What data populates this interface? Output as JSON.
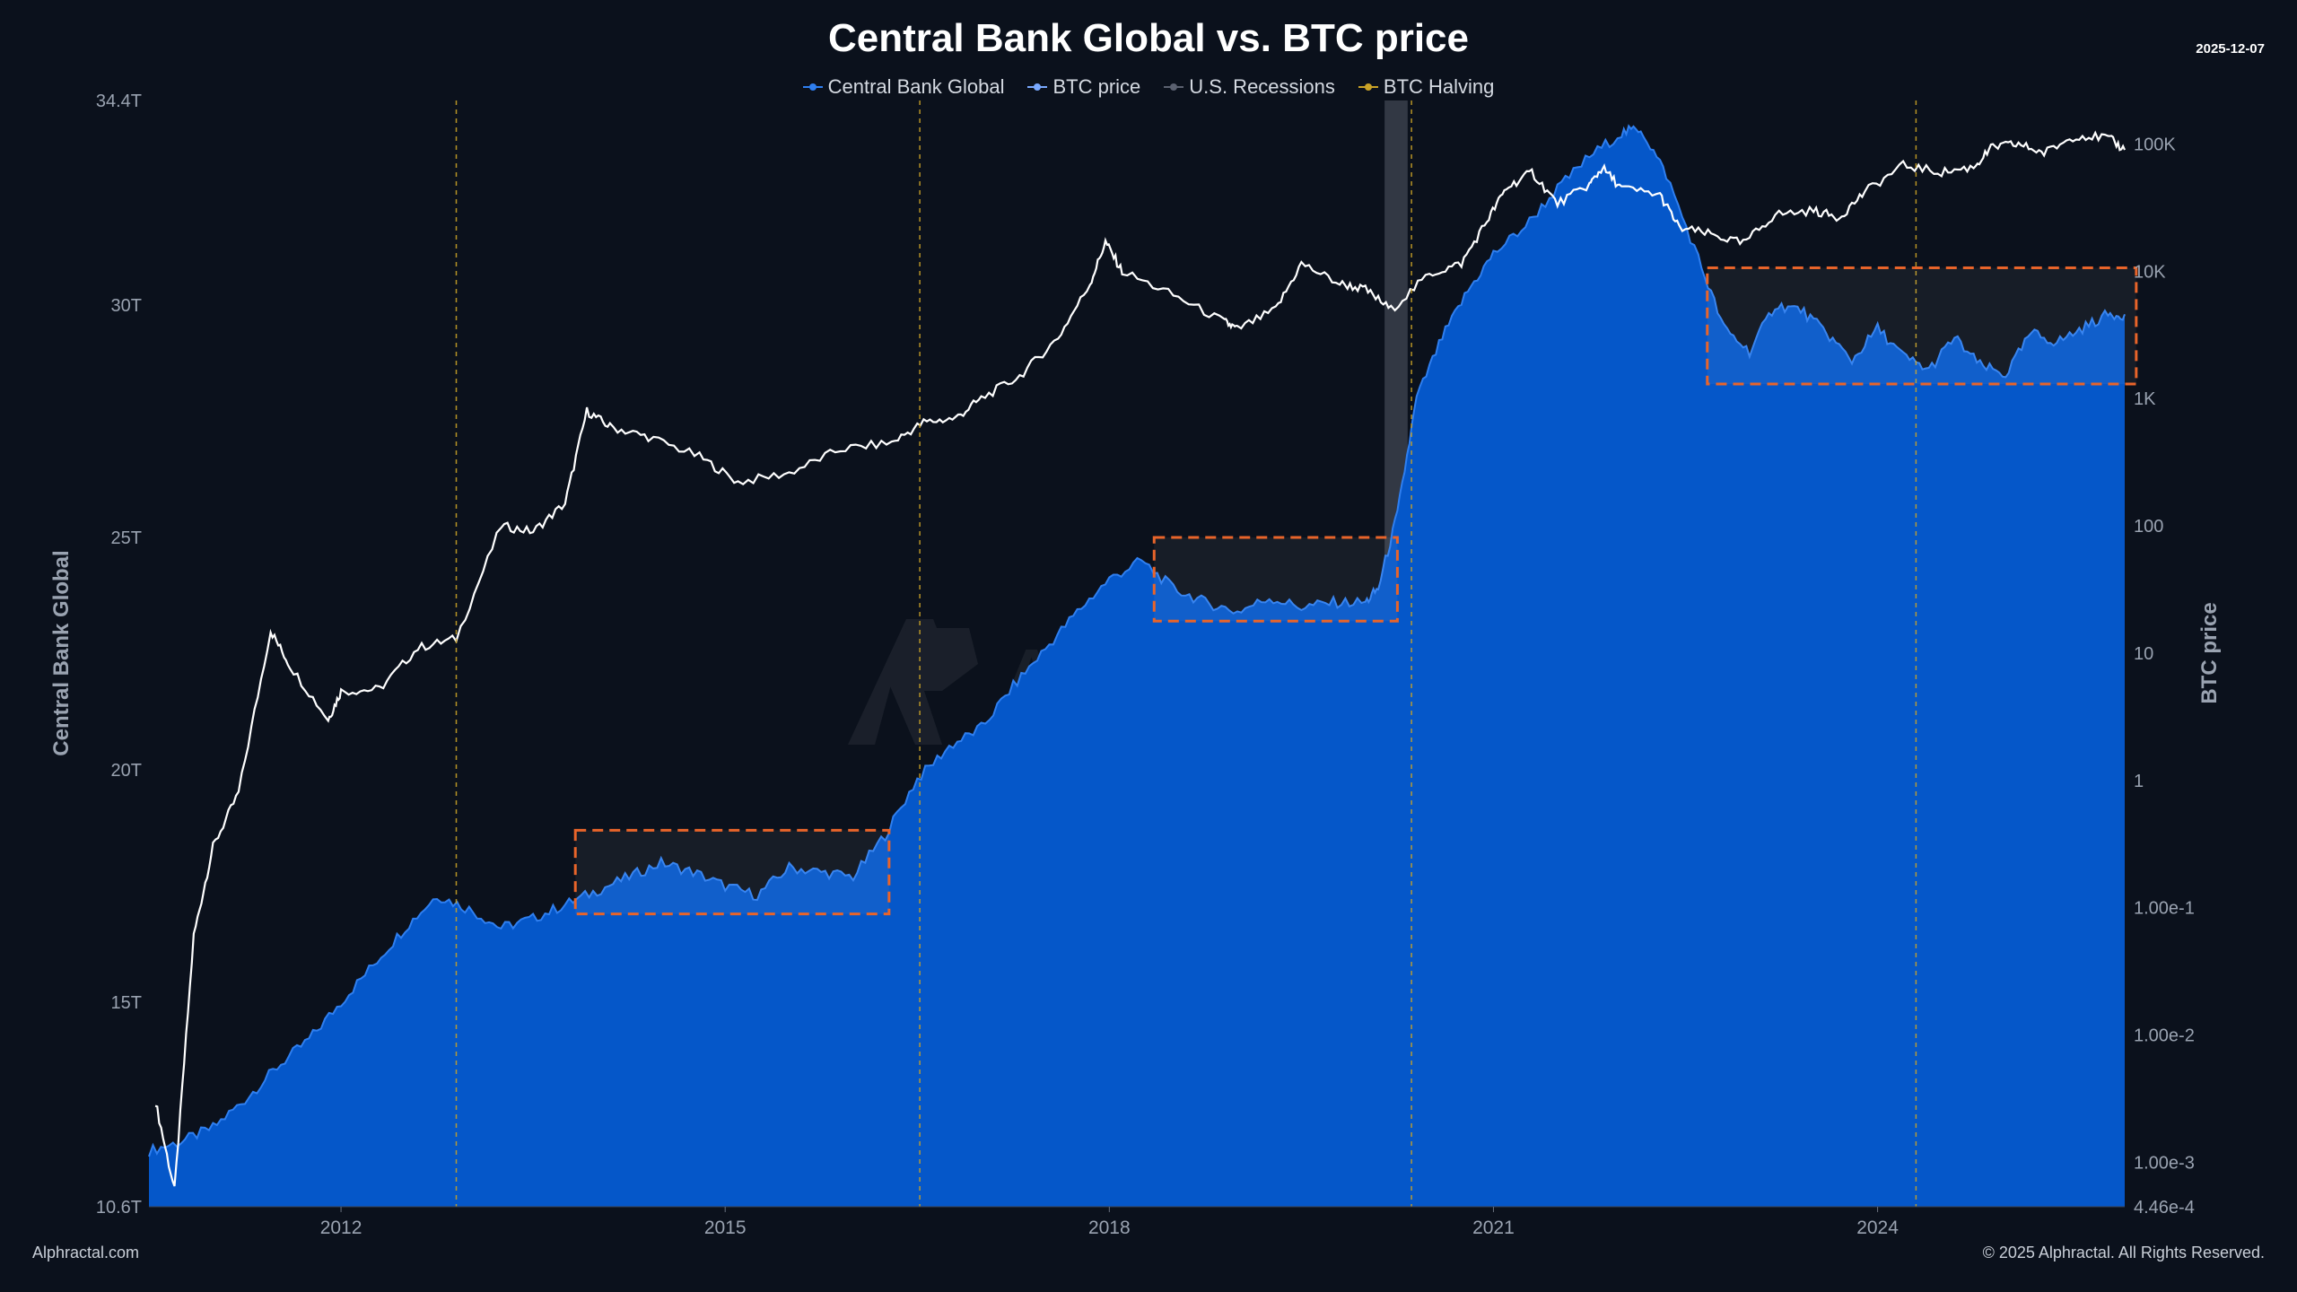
{
  "header": {
    "title": "Central Bank Global vs. BTC price",
    "date": "2025-12-07"
  },
  "legend": [
    {
      "label": "Central Bank Global",
      "color": "#2f7ff0"
    },
    {
      "label": "BTC price",
      "color": "#79a9ff"
    },
    {
      "label": "U.S. Recessions",
      "color": "#5b6170"
    },
    {
      "label": "BTC Halving",
      "color": "#c9a227"
    }
  ],
  "footer": {
    "left": "Alphractal.com",
    "right": "© 2025 Alphractal. All Rights Reserved."
  },
  "watermark": "Alphractal",
  "colors": {
    "background": "#0b111c",
    "area_fill": "#0557c9",
    "area_edge": "#2f7ff0",
    "btc_line": "#ffffff",
    "halving": "#c9a227",
    "recession": "#3a3f4b",
    "highlight_box": "#e8642a"
  },
  "chart_data": {
    "type": "area",
    "title": "Central Bank Global vs. BTC price",
    "x_range": [
      2010.5,
      2025.93
    ],
    "x_ticks": [
      {
        "value": 2012,
        "label": "2012"
      },
      {
        "value": 2015,
        "label": "2015"
      },
      {
        "value": 2018,
        "label": "2018"
      },
      {
        "value": 2021,
        "label": "2021"
      },
      {
        "value": 2024,
        "label": "2024"
      }
    ],
    "y_left": {
      "label": "Central Bank Global",
      "range": [
        10.6,
        34.4
      ],
      "ticks": [
        {
          "value": 10.6,
          "label": "10.6T"
        },
        {
          "value": 15,
          "label": "15T"
        },
        {
          "value": 20,
          "label": "20T"
        },
        {
          "value": 25,
          "label": "25T"
        },
        {
          "value": 30,
          "label": "30T"
        },
        {
          "value": 34.4,
          "label": "34.4T"
        }
      ]
    },
    "y_right": {
      "label": "BTC price",
      "scale": "log",
      "range": [
        0.000446,
        220000
      ],
      "ticks": [
        {
          "value": 0.000446,
          "label": "4.46e-4"
        },
        {
          "value": 0.001,
          "label": "1.00e-3"
        },
        {
          "value": 0.01,
          "label": "1.00e-2"
        },
        {
          "value": 0.1,
          "label": "1.00e-1"
        },
        {
          "value": 1,
          "label": "1"
        },
        {
          "value": 10,
          "label": "10"
        },
        {
          "value": 100,
          "label": "100"
        },
        {
          "value": 1000,
          "label": "1K"
        },
        {
          "value": 10000,
          "label": "10K"
        },
        {
          "value": 100000,
          "label": "100K"
        }
      ]
    },
    "series": [
      {
        "name": "Central Bank Global",
        "axis": "left",
        "points": [
          [
            2010.5,
            11.8
          ],
          [
            2010.75,
            12.0
          ],
          [
            2011.0,
            12.3
          ],
          [
            2011.25,
            12.9
          ],
          [
            2011.5,
            13.6
          ],
          [
            2011.75,
            14.2
          ],
          [
            2012.0,
            15.0
          ],
          [
            2012.25,
            15.8
          ],
          [
            2012.5,
            16.6
          ],
          [
            2012.75,
            17.3
          ],
          [
            2013.0,
            17.0
          ],
          [
            2013.25,
            16.6
          ],
          [
            2013.5,
            16.8
          ],
          [
            2013.75,
            17.1
          ],
          [
            2014.0,
            17.4
          ],
          [
            2014.25,
            17.7
          ],
          [
            2014.5,
            18.0
          ],
          [
            2014.75,
            17.8
          ],
          [
            2015.0,
            17.5
          ],
          [
            2015.25,
            17.3
          ],
          [
            2015.5,
            17.9
          ],
          [
            2015.75,
            17.8
          ],
          [
            2016.0,
            17.7
          ],
          [
            2016.25,
            18.6
          ],
          [
            2016.5,
            19.8
          ],
          [
            2016.75,
            20.5
          ],
          [
            2017.0,
            20.9
          ],
          [
            2017.25,
            21.8
          ],
          [
            2017.5,
            22.6
          ],
          [
            2017.75,
            23.4
          ],
          [
            2018.0,
            24.1
          ],
          [
            2018.25,
            24.5
          ],
          [
            2018.5,
            23.9
          ],
          [
            2018.75,
            23.6
          ],
          [
            2019.0,
            23.4
          ],
          [
            2019.25,
            23.7
          ],
          [
            2019.5,
            23.5
          ],
          [
            2019.75,
            23.6
          ],
          [
            2020.0,
            23.6
          ],
          [
            2020.1,
            23.9
          ],
          [
            2020.25,
            25.5
          ],
          [
            2020.4,
            28.0
          ],
          [
            2020.6,
            29.3
          ],
          [
            2020.8,
            30.3
          ],
          [
            2021.0,
            31.1
          ],
          [
            2021.25,
            31.7
          ],
          [
            2021.5,
            32.5
          ],
          [
            2021.75,
            33.2
          ],
          [
            2022.0,
            33.7
          ],
          [
            2022.15,
            33.8
          ],
          [
            2022.35,
            32.8
          ],
          [
            2022.6,
            31.0
          ],
          [
            2022.8,
            29.5
          ],
          [
            2023.0,
            29.0
          ],
          [
            2023.2,
            30.0
          ],
          [
            2023.4,
            29.9
          ],
          [
            2023.6,
            29.4
          ],
          [
            2023.8,
            28.8
          ],
          [
            2024.0,
            29.5
          ],
          [
            2024.2,
            28.9
          ],
          [
            2024.4,
            28.6
          ],
          [
            2024.6,
            29.3
          ],
          [
            2024.8,
            28.7
          ],
          [
            2025.0,
            28.5
          ],
          [
            2025.2,
            29.4
          ],
          [
            2025.4,
            29.2
          ],
          [
            2025.6,
            29.5
          ],
          [
            2025.8,
            29.8
          ],
          [
            2025.93,
            29.8
          ]
        ]
      },
      {
        "name": "BTC price",
        "axis": "right",
        "points": [
          [
            2010.55,
            0.003
          ],
          [
            2010.7,
            0.0006
          ],
          [
            2010.85,
            0.06
          ],
          [
            2011.0,
            0.3
          ],
          [
            2011.2,
            0.8
          ],
          [
            2011.45,
            15
          ],
          [
            2011.6,
            8
          ],
          [
            2011.9,
            3
          ],
          [
            2012.0,
            5
          ],
          [
            2012.3,
            5.2
          ],
          [
            2012.6,
            11
          ],
          [
            2012.9,
            13
          ],
          [
            2013.25,
            100
          ],
          [
            2013.5,
            90
          ],
          [
            2013.75,
            150
          ],
          [
            2013.92,
            800
          ],
          [
            2014.1,
            600
          ],
          [
            2014.4,
            500
          ],
          [
            2014.8,
            350
          ],
          [
            2015.1,
            220
          ],
          [
            2015.5,
            260
          ],
          [
            2015.9,
            400
          ],
          [
            2016.3,
            450
          ],
          [
            2016.55,
            650
          ],
          [
            2016.8,
            700
          ],
          [
            2017.0,
            1000
          ],
          [
            2017.3,
            1500
          ],
          [
            2017.6,
            3000
          ],
          [
            2017.85,
            8000
          ],
          [
            2017.97,
            17000
          ],
          [
            2018.1,
            10000
          ],
          [
            2018.5,
            6500
          ],
          [
            2018.9,
            4000
          ],
          [
            2019.0,
            3500
          ],
          [
            2019.3,
            5000
          ],
          [
            2019.5,
            11500
          ],
          [
            2019.8,
            8000
          ],
          [
            2020.0,
            7200
          ],
          [
            2020.2,
            5000
          ],
          [
            2020.5,
            9500
          ],
          [
            2020.75,
            11500
          ],
          [
            2020.95,
            25000
          ],
          [
            2021.1,
            45000
          ],
          [
            2021.3,
            60000
          ],
          [
            2021.5,
            34000
          ],
          [
            2021.75,
            48000
          ],
          [
            2021.85,
            65000
          ],
          [
            2022.0,
            45000
          ],
          [
            2022.3,
            40000
          ],
          [
            2022.45,
            22000
          ],
          [
            2022.7,
            19500
          ],
          [
            2022.95,
            16500
          ],
          [
            2023.2,
            28000
          ],
          [
            2023.5,
            30000
          ],
          [
            2023.7,
            26500
          ],
          [
            2023.9,
            42000
          ],
          [
            2024.2,
            68000
          ],
          [
            2024.5,
            60000
          ],
          [
            2024.75,
            66000
          ],
          [
            2024.9,
            95000
          ],
          [
            2025.1,
            100000
          ],
          [
            2025.3,
            85000
          ],
          [
            2025.55,
            117000
          ],
          [
            2025.8,
            112000
          ],
          [
            2025.93,
            90000
          ]
        ]
      }
    ],
    "halvings": [
      2012.9,
      2016.52,
      2020.36,
      2024.3
    ],
    "recessions": [
      [
        2020.15,
        2020.33
      ]
    ],
    "highlight_boxes": [
      {
        "x": [
          2013.83,
          2016.28
        ],
        "y": [
          16.9,
          18.7
        ]
      },
      {
        "x": [
          2018.35,
          2020.25
        ],
        "y": [
          23.2,
          25.0
        ]
      },
      {
        "x": [
          2022.67,
          2026.02
        ],
        "y": [
          28.3,
          30.8
        ]
      }
    ]
  }
}
